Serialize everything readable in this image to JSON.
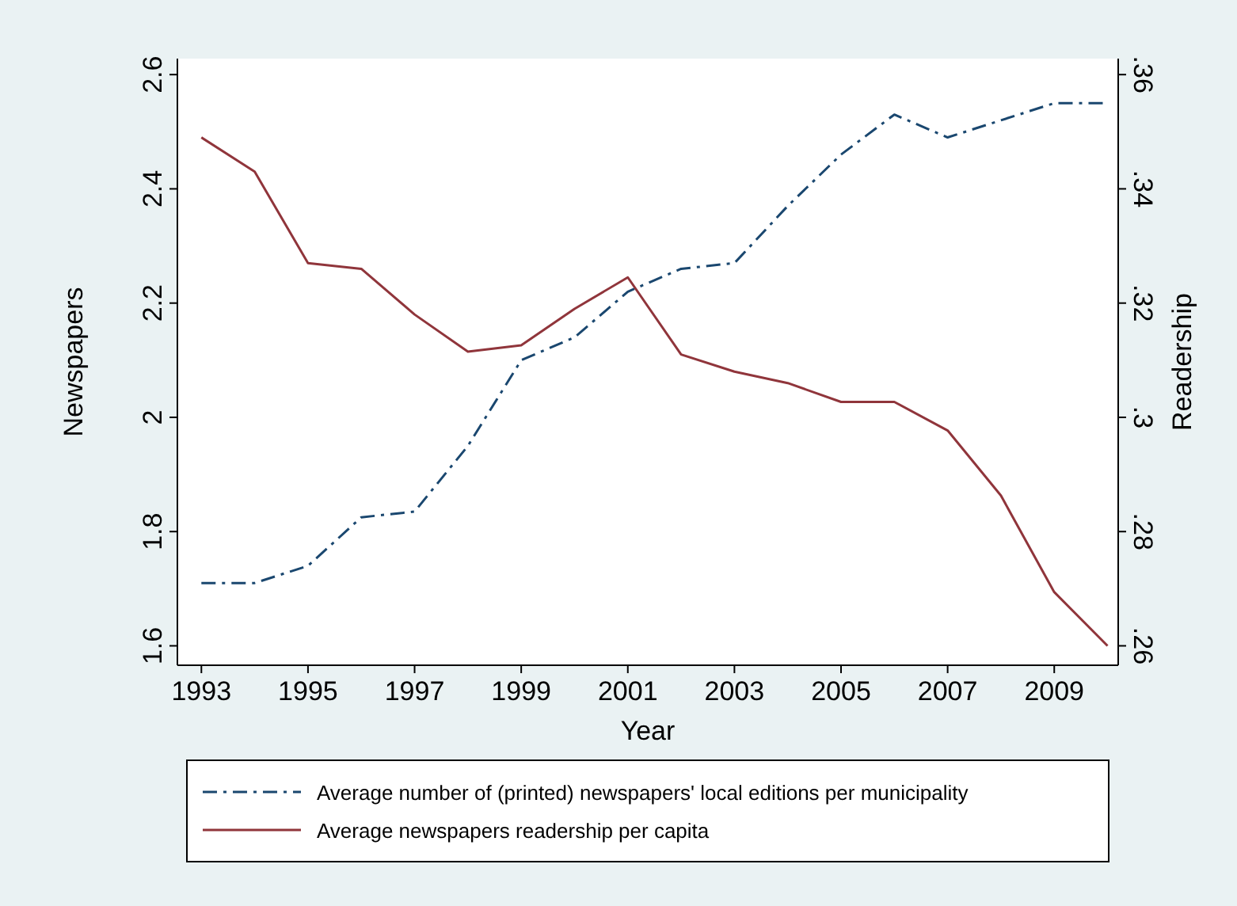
{
  "chart_data": {
    "type": "line",
    "xlabel": "Year",
    "ylabel": "Newspapers",
    "y2label": "Readership",
    "x": [
      1993,
      1994,
      1995,
      1996,
      1997,
      1998,
      1999,
      2000,
      2001,
      2002,
      2003,
      2004,
      2005,
      2006,
      2007,
      2008,
      2009,
      2010
    ],
    "series": [
      {
        "name": "Average number of (printed) newspapers' local editions per municipality",
        "color": "#1a476f",
        "line_style": "dashed",
        "values": [
          1.71,
          1.71,
          1.74,
          1.825,
          1.835,
          1.95,
          2.1,
          2.14,
          2.22,
          2.26,
          2.27,
          2.37,
          2.46,
          2.53,
          2.49,
          2.52,
          2.55,
          2.55
        ]
      },
      {
        "name": "Average newspapers readership per capita",
        "color": "#90353b",
        "line_style": "solid",
        "axis": "y2",
        "values": [
          0.349,
          0.343,
          0.327,
          0.326,
          0.318,
          0.3115,
          0.3126,
          0.319,
          0.3245,
          0.311,
          0.308,
          0.306,
          0.3027,
          0.3027,
          0.2977,
          0.2863,
          0.2694,
          0.26
        ]
      }
    ],
    "xlim": [
      1992.55,
      2010.2
    ],
    "xticks": [
      1993,
      1995,
      1997,
      1999,
      2001,
      2003,
      2005,
      2007,
      2009
    ],
    "ylim": [
      1.566,
      2.628
    ],
    "yticks": [
      1.6,
      1.8,
      2,
      2.2,
      2.4,
      2.6
    ],
    "y2lim": [
      0.2566,
      0.3628
    ],
    "y2ticks": [
      {
        "value": 0.26,
        "label": ".26"
      },
      {
        "value": 0.28,
        "label": ".28"
      },
      {
        "value": 0.3,
        "label": ".3"
      },
      {
        "value": 0.32,
        "label": ".32"
      },
      {
        "value": 0.34,
        "label": ".34"
      },
      {
        "value": 0.36,
        "label": ".36"
      }
    ],
    "grid": false,
    "legend": "bottom"
  }
}
